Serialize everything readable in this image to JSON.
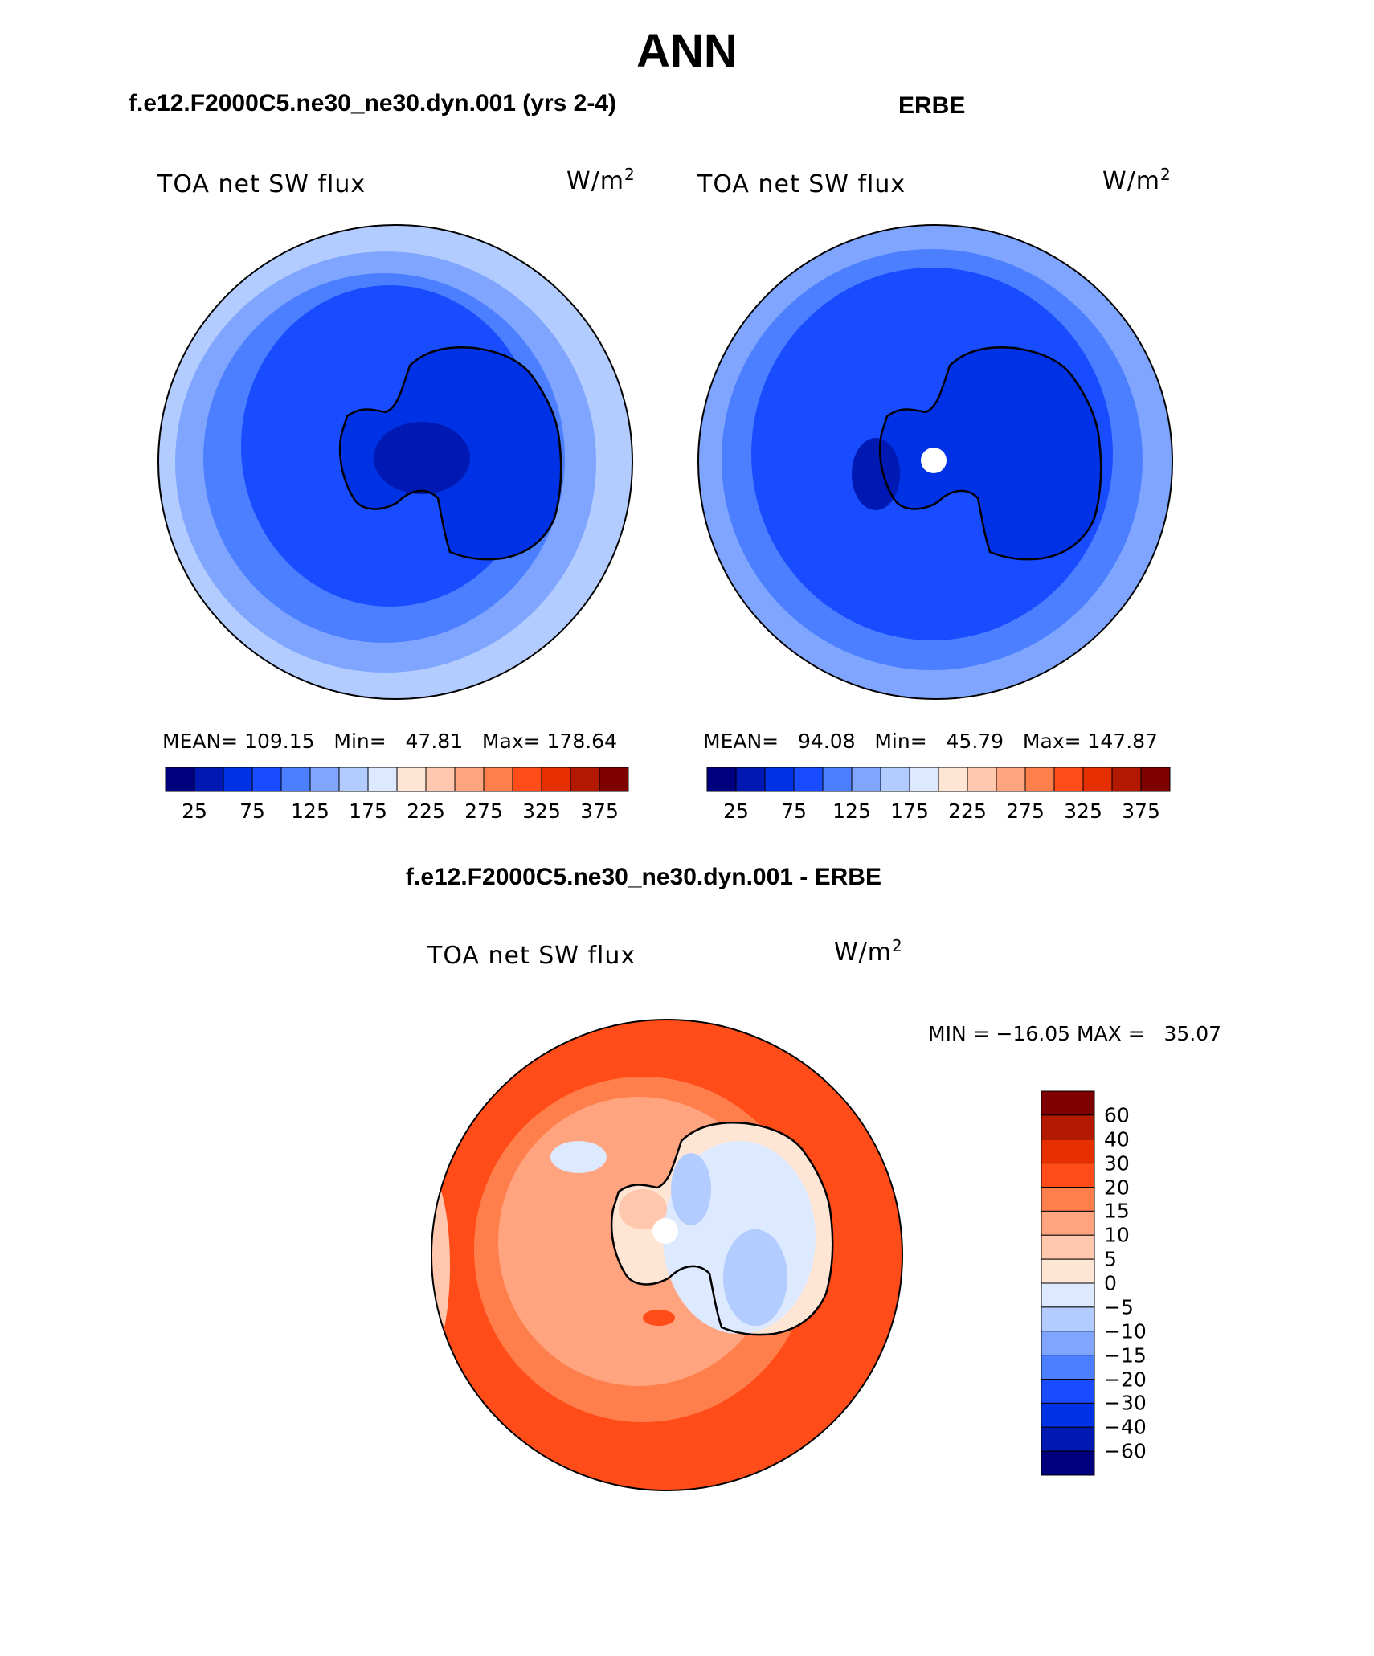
{
  "title": "ANN",
  "panels": [
    {
      "title": "f.e12.F2000C5.ne30_ne30.dyn.001 (yrs 2-4)",
      "variable": "TOA net SW flux",
      "units": "W/m",
      "units_sup": "2",
      "stats": "MEAN= 109.15   Min=   47.81   Max= 178.64",
      "colorbar_labels": [
        "25",
        "75",
        "125",
        "175",
        "225",
        "275",
        "325",
        "375"
      ]
    },
    {
      "title": "ERBE",
      "variable": "TOA net SW flux",
      "units": "W/m",
      "units_sup": "2",
      "stats": "MEAN=   94.08   Min=   45.79   Max= 147.87",
      "colorbar_labels": [
        "25",
        "75",
        "125",
        "175",
        "225",
        "275",
        "325",
        "375"
      ]
    },
    {
      "title": "f.e12.F2000C5.ne30_ne30.dyn.001 - ERBE",
      "variable": "TOA net SW flux",
      "units": "W/m",
      "units_sup": "2",
      "stats": "MIN = −16.05 MAX =   35.07",
      "colorbar_labels": [
        "60",
        "40",
        "30",
        "20",
        "15",
        "10",
        "5",
        "0",
        "−5",
        "−10",
        "−15",
        "−20",
        "−30",
        "−40",
        "−60"
      ]
    }
  ],
  "colors": {
    "abs_scale": [
      "#00007f",
      "#0019b2",
      "#0032e5",
      "#194cff",
      "#4c7fff",
      "#7fa5ff",
      "#b2ccff",
      "#dde9ff",
      "#ffe5d4",
      "#ffc7ad",
      "#ffa47f",
      "#ff7f4c",
      "#ff4c19",
      "#e52f00",
      "#b21900",
      "#7f0000"
    ],
    "diff_scale": [
      "#00007f",
      "#0019b2",
      "#0032e5",
      "#194cff",
      "#4c7fff",
      "#7fa5ff",
      "#b2ccff",
      "#dde9ff",
      "#ffe5d4",
      "#ffc7ad",
      "#ffa47f",
      "#ff7f4c",
      "#ff4c19",
      "#e52f00",
      "#b21900",
      "#7f0000"
    ]
  }
}
